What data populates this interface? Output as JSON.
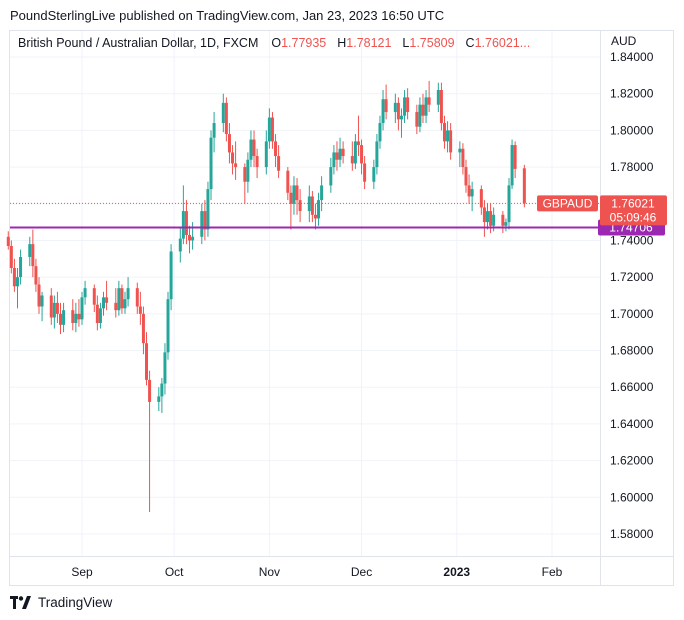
{
  "header": {
    "publisher": "PoundSterlingLive published on TradingView.com, Jan 23, 2023 16:50 UTC"
  },
  "legend": {
    "symbol": "British Pound / Australian Dollar, 1D, FXCM",
    "o_label": "O",
    "o_value": "1.77935",
    "h_label": "H",
    "h_value": "1.78121",
    "l_label": "L",
    "l_value": "1.75809",
    "c_label": "C",
    "c_value": "1.76021..."
  },
  "axis": {
    "unit": "AUD"
  },
  "footer": {
    "brand": "TradingView"
  },
  "colors": {
    "up": "#26a69a",
    "down": "#ef5350",
    "level_line": "#9c27b0",
    "grid": "#f0f3fa"
  },
  "chart_data": {
    "type": "candlestick",
    "ylim": [
      1.57,
      1.845
    ],
    "y_ticks": [
      "1.84000",
      "1.82000",
      "1.80000",
      "1.78000",
      "1.76000",
      "1.74000",
      "1.72000",
      "1.70000",
      "1.68000",
      "1.66000",
      "1.64000",
      "1.62000",
      "1.60000",
      "1.58000"
    ],
    "x_ticks": [
      "Sep",
      "Oct",
      "Nov",
      "Dec",
      "2023",
      "Feb"
    ],
    "x_tick_bold": "2023",
    "x_range": [
      "2022-08-08",
      "2023-02-10"
    ],
    "x_tick_dates": [
      "2022-09-01",
      "2022-10-01",
      "2022-11-01",
      "2022-12-01",
      "2023-01-01",
      "2023-02-01"
    ],
    "ohlc": [
      {
        "date": "2022-08-08",
        "o": 1.742,
        "h": 1.745,
        "l": 1.735,
        "c": 1.737
      },
      {
        "date": "2022-08-09",
        "o": 1.737,
        "h": 1.74,
        "l": 1.722,
        "c": 1.725
      },
      {
        "date": "2022-08-10",
        "o": 1.725,
        "h": 1.73,
        "l": 1.712,
        "c": 1.715
      },
      {
        "date": "2022-08-11",
        "o": 1.715,
        "h": 1.725,
        "l": 1.703,
        "c": 1.72
      },
      {
        "date": "2022-08-12",
        "o": 1.72,
        "h": 1.735,
        "l": 1.716,
        "c": 1.731
      },
      {
        "date": "2022-08-15",
        "o": 1.731,
        "h": 1.742,
        "l": 1.726,
        "c": 1.738
      },
      {
        "date": "2022-08-16",
        "o": 1.738,
        "h": 1.746,
        "l": 1.72,
        "c": 1.726
      },
      {
        "date": "2022-08-17",
        "o": 1.726,
        "h": 1.73,
        "l": 1.712,
        "c": 1.716
      },
      {
        "date": "2022-08-18",
        "o": 1.716,
        "h": 1.72,
        "l": 1.7,
        "c": 1.704
      },
      {
        "date": "2022-08-19",
        "o": 1.704,
        "h": 1.712,
        "l": 1.696,
        "c": 1.71
      },
      {
        "date": "2022-08-22",
        "o": 1.71,
        "h": 1.714,
        "l": 1.694,
        "c": 1.698
      },
      {
        "date": "2022-08-23",
        "o": 1.698,
        "h": 1.71,
        "l": 1.692,
        "c": 1.706
      },
      {
        "date": "2022-08-24",
        "o": 1.706,
        "h": 1.712,
        "l": 1.695,
        "c": 1.7
      },
      {
        "date": "2022-08-25",
        "o": 1.7,
        "h": 1.706,
        "l": 1.689,
        "c": 1.694
      },
      {
        "date": "2022-08-26",
        "o": 1.694,
        "h": 1.706,
        "l": 1.69,
        "c": 1.702
      },
      {
        "date": "2022-08-29",
        "o": 1.702,
        "h": 1.708,
        "l": 1.691,
        "c": 1.695
      },
      {
        "date": "2022-08-30",
        "o": 1.695,
        "h": 1.706,
        "l": 1.69,
        "c": 1.7
      },
      {
        "date": "2022-08-31",
        "o": 1.7,
        "h": 1.708,
        "l": 1.693,
        "c": 1.697
      },
      {
        "date": "2022-09-01",
        "o": 1.697,
        "h": 1.712,
        "l": 1.694,
        "c": 1.709
      },
      {
        "date": "2022-09-02",
        "o": 1.709,
        "h": 1.718,
        "l": 1.705,
        "c": 1.714
      },
      {
        "date": "2022-09-05",
        "o": 1.714,
        "h": 1.716,
        "l": 1.701,
        "c": 1.705
      },
      {
        "date": "2022-09-06",
        "o": 1.705,
        "h": 1.71,
        "l": 1.691,
        "c": 1.695
      },
      {
        "date": "2022-09-07",
        "o": 1.695,
        "h": 1.706,
        "l": 1.692,
        "c": 1.703
      },
      {
        "date": "2022-09-08",
        "o": 1.703,
        "h": 1.712,
        "l": 1.699,
        "c": 1.709
      },
      {
        "date": "2022-09-09",
        "o": 1.709,
        "h": 1.718,
        "l": 1.702,
        "c": 1.706
      },
      {
        "date": "2022-09-12",
        "o": 1.706,
        "h": 1.714,
        "l": 1.698,
        "c": 1.702
      },
      {
        "date": "2022-09-13",
        "o": 1.702,
        "h": 1.718,
        "l": 1.699,
        "c": 1.714
      },
      {
        "date": "2022-09-14",
        "o": 1.714,
        "h": 1.716,
        "l": 1.7,
        "c": 1.703
      },
      {
        "date": "2022-09-15",
        "o": 1.703,
        "h": 1.712,
        "l": 1.7,
        "c": 1.708
      },
      {
        "date": "2022-09-16",
        "o": 1.708,
        "h": 1.72,
        "l": 1.704,
        "c": 1.714
      },
      {
        "date": "2022-09-19",
        "o": 1.714,
        "h": 1.717,
        "l": 1.7,
        "c": 1.704
      },
      {
        "date": "2022-09-20",
        "o": 1.704,
        "h": 1.712,
        "l": 1.694,
        "c": 1.7
      },
      {
        "date": "2022-09-21",
        "o": 1.7,
        "h": 1.704,
        "l": 1.678,
        "c": 1.684
      },
      {
        "date": "2022-09-22",
        "o": 1.684,
        "h": 1.69,
        "l": 1.661,
        "c": 1.664
      },
      {
        "date": "2022-09-23",
        "o": 1.664,
        "h": 1.669,
        "l": 1.592,
        "c": 1.652
      },
      {
        "date": "2022-09-26",
        "o": 1.652,
        "h": 1.66,
        "l": 1.647,
        "c": 1.655
      },
      {
        "date": "2022-09-27",
        "o": 1.655,
        "h": 1.665,
        "l": 1.646,
        "c": 1.662
      },
      {
        "date": "2022-09-28",
        "o": 1.662,
        "h": 1.684,
        "l": 1.656,
        "c": 1.679
      },
      {
        "date": "2022-09-29",
        "o": 1.679,
        "h": 1.712,
        "l": 1.675,
        "c": 1.708
      },
      {
        "date": "2022-09-30",
        "o": 1.708,
        "h": 1.738,
        "l": 1.702,
        "c": 1.734
      },
      {
        "date": "2022-10-03",
        "o": 1.734,
        "h": 1.747,
        "l": 1.728,
        "c": 1.741
      },
      {
        "date": "2022-10-04",
        "o": 1.741,
        "h": 1.77,
        "l": 1.738,
        "c": 1.756
      },
      {
        "date": "2022-10-05",
        "o": 1.756,
        "h": 1.762,
        "l": 1.738,
        "c": 1.743
      },
      {
        "date": "2022-10-06",
        "o": 1.743,
        "h": 1.748,
        "l": 1.733,
        "c": 1.74
      },
      {
        "date": "2022-10-07",
        "o": 1.74,
        "h": 1.75,
        "l": 1.735,
        "c": 1.742
      },
      {
        "date": "2022-10-10",
        "o": 1.742,
        "h": 1.76,
        "l": 1.738,
        "c": 1.756
      },
      {
        "date": "2022-10-11",
        "o": 1.756,
        "h": 1.762,
        "l": 1.74,
        "c": 1.746
      },
      {
        "date": "2022-10-12",
        "o": 1.746,
        "h": 1.772,
        "l": 1.742,
        "c": 1.768
      },
      {
        "date": "2022-10-13",
        "o": 1.768,
        "h": 1.8,
        "l": 1.762,
        "c": 1.796
      },
      {
        "date": "2022-10-14",
        "o": 1.796,
        "h": 1.81,
        "l": 1.788,
        "c": 1.804
      },
      {
        "date": "2022-10-17",
        "o": 1.804,
        "h": 1.82,
        "l": 1.799,
        "c": 1.815
      },
      {
        "date": "2022-10-18",
        "o": 1.815,
        "h": 1.818,
        "l": 1.794,
        "c": 1.798
      },
      {
        "date": "2022-10-19",
        "o": 1.798,
        "h": 1.804,
        "l": 1.782,
        "c": 1.788
      },
      {
        "date": "2022-10-20",
        "o": 1.788,
        "h": 1.792,
        "l": 1.776,
        "c": 1.782
      },
      {
        "date": "2022-10-21",
        "o": 1.782,
        "h": 1.794,
        "l": 1.773,
        "c": 1.78
      },
      {
        "date": "2022-10-24",
        "o": 1.78,
        "h": 1.782,
        "l": 1.76,
        "c": 1.772
      },
      {
        "date": "2022-10-25",
        "o": 1.772,
        "h": 1.788,
        "l": 1.766,
        "c": 1.784
      },
      {
        "date": "2022-10-26",
        "o": 1.784,
        "h": 1.8,
        "l": 1.78,
        "c": 1.795
      },
      {
        "date": "2022-10-27",
        "o": 1.795,
        "h": 1.8,
        "l": 1.78,
        "c": 1.786
      },
      {
        "date": "2022-10-28",
        "o": 1.786,
        "h": 1.79,
        "l": 1.774,
        "c": 1.78
      },
      {
        "date": "2022-10-31",
        "o": 1.78,
        "h": 1.8,
        "l": 1.776,
        "c": 1.794
      },
      {
        "date": "2022-11-01",
        "o": 1.794,
        "h": 1.812,
        "l": 1.79,
        "c": 1.807
      },
      {
        "date": "2022-11-02",
        "o": 1.807,
        "h": 1.81,
        "l": 1.79,
        "c": 1.794
      },
      {
        "date": "2022-11-03",
        "o": 1.794,
        "h": 1.798,
        "l": 1.78,
        "c": 1.786
      },
      {
        "date": "2022-11-04",
        "o": 1.786,
        "h": 1.792,
        "l": 1.774,
        "c": 1.778
      },
      {
        "date": "2022-11-07",
        "o": 1.778,
        "h": 1.78,
        "l": 1.762,
        "c": 1.766
      },
      {
        "date": "2022-11-08",
        "o": 1.766,
        "h": 1.77,
        "l": 1.746,
        "c": 1.76
      },
      {
        "date": "2022-11-09",
        "o": 1.76,
        "h": 1.775,
        "l": 1.754,
        "c": 1.77
      },
      {
        "date": "2022-11-10",
        "o": 1.77,
        "h": 1.774,
        "l": 1.754,
        "c": 1.762
      },
      {
        "date": "2022-11-11",
        "o": 1.762,
        "h": 1.768,
        "l": 1.75,
        "c": 1.756
      },
      {
        "date": "2022-11-14",
        "o": 1.756,
        "h": 1.77,
        "l": 1.75,
        "c": 1.764
      },
      {
        "date": "2022-11-15",
        "o": 1.764,
        "h": 1.767,
        "l": 1.75,
        "c": 1.754
      },
      {
        "date": "2022-11-16",
        "o": 1.754,
        "h": 1.76,
        "l": 1.746,
        "c": 1.752
      },
      {
        "date": "2022-11-17",
        "o": 1.752,
        "h": 1.766,
        "l": 1.748,
        "c": 1.762
      },
      {
        "date": "2022-11-18",
        "o": 1.762,
        "h": 1.775,
        "l": 1.756,
        "c": 1.77
      },
      {
        "date": "2022-11-21",
        "o": 1.77,
        "h": 1.785,
        "l": 1.766,
        "c": 1.78
      },
      {
        "date": "2022-11-22",
        "o": 1.78,
        "h": 1.792,
        "l": 1.776,
        "c": 1.788
      },
      {
        "date": "2022-11-23",
        "o": 1.788,
        "h": 1.794,
        "l": 1.778,
        "c": 1.784
      },
      {
        "date": "2022-11-24",
        "o": 1.784,
        "h": 1.796,
        "l": 1.78,
        "c": 1.79
      },
      {
        "date": "2022-11-25",
        "o": 1.79,
        "h": 1.794,
        "l": 1.782,
        "c": 1.786
      },
      {
        "date": "2022-11-28",
        "o": 1.786,
        "h": 1.794,
        "l": 1.778,
        "c": 1.782
      },
      {
        "date": "2022-11-29",
        "o": 1.782,
        "h": 1.798,
        "l": 1.779,
        "c": 1.794
      },
      {
        "date": "2022-11-30",
        "o": 1.794,
        "h": 1.808,
        "l": 1.786,
        "c": 1.792
      },
      {
        "date": "2022-12-01",
        "o": 1.792,
        "h": 1.795,
        "l": 1.776,
        "c": 1.782
      },
      {
        "date": "2022-12-02",
        "o": 1.782,
        "h": 1.786,
        "l": 1.768,
        "c": 1.772
      },
      {
        "date": "2022-12-05",
        "o": 1.772,
        "h": 1.784,
        "l": 1.768,
        "c": 1.78
      },
      {
        "date": "2022-12-06",
        "o": 1.78,
        "h": 1.798,
        "l": 1.776,
        "c": 1.794
      },
      {
        "date": "2022-12-07",
        "o": 1.794,
        "h": 1.808,
        "l": 1.79,
        "c": 1.804
      },
      {
        "date": "2022-12-08",
        "o": 1.804,
        "h": 1.822,
        "l": 1.8,
        "c": 1.817
      },
      {
        "date": "2022-12-09",
        "o": 1.817,
        "h": 1.825,
        "l": 1.806,
        "c": 1.81
      },
      {
        "date": "2022-12-12",
        "o": 1.81,
        "h": 1.82,
        "l": 1.804,
        "c": 1.815
      },
      {
        "date": "2022-12-13",
        "o": 1.815,
        "h": 1.818,
        "l": 1.8,
        "c": 1.806
      },
      {
        "date": "2022-12-14",
        "o": 1.806,
        "h": 1.812,
        "l": 1.796,
        "c": 1.808
      },
      {
        "date": "2022-12-15",
        "o": 1.808,
        "h": 1.822,
        "l": 1.804,
        "c": 1.818
      },
      {
        "date": "2022-12-16",
        "o": 1.818,
        "h": 1.823,
        "l": 1.806,
        "c": 1.81
      },
      {
        "date": "2022-12-19",
        "o": 1.81,
        "h": 1.814,
        "l": 1.798,
        "c": 1.802
      },
      {
        "date": "2022-12-20",
        "o": 1.802,
        "h": 1.818,
        "l": 1.799,
        "c": 1.814
      },
      {
        "date": "2022-12-21",
        "o": 1.814,
        "h": 1.82,
        "l": 1.804,
        "c": 1.808
      },
      {
        "date": "2022-12-22",
        "o": 1.808,
        "h": 1.822,
        "l": 1.804,
        "c": 1.818
      },
      {
        "date": "2022-12-23",
        "o": 1.818,
        "h": 1.827,
        "l": 1.81,
        "c": 1.814
      },
      {
        "date": "2022-12-26",
        "o": 1.814,
        "h": 1.826,
        "l": 1.81,
        "c": 1.822
      },
      {
        "date": "2022-12-27",
        "o": 1.822,
        "h": 1.826,
        "l": 1.8,
        "c": 1.804
      },
      {
        "date": "2022-12-28",
        "o": 1.804,
        "h": 1.808,
        "l": 1.79,
        "c": 1.794
      },
      {
        "date": "2022-12-29",
        "o": 1.794,
        "h": 1.805,
        "l": 1.788,
        "c": 1.8
      },
      {
        "date": "2022-12-30",
        "o": 1.8,
        "h": 1.804,
        "l": 1.784,
        "c": 1.788
      },
      {
        "date": "2023-01-02",
        "o": 1.788,
        "h": 1.794,
        "l": 1.78,
        "c": 1.79
      },
      {
        "date": "2023-01-03",
        "o": 1.79,
        "h": 1.793,
        "l": 1.776,
        "c": 1.78
      },
      {
        "date": "2023-01-04",
        "o": 1.78,
        "h": 1.784,
        "l": 1.766,
        "c": 1.77
      },
      {
        "date": "2023-01-05",
        "o": 1.77,
        "h": 1.776,
        "l": 1.76,
        "c": 1.764
      },
      {
        "date": "2023-01-06",
        "o": 1.764,
        "h": 1.772,
        "l": 1.756,
        "c": 1.768
      },
      {
        "date": "2023-01-09",
        "o": 1.768,
        "h": 1.77,
        "l": 1.754,
        "c": 1.758
      },
      {
        "date": "2023-01-10",
        "o": 1.758,
        "h": 1.762,
        "l": 1.742,
        "c": 1.75
      },
      {
        "date": "2023-01-11",
        "o": 1.75,
        "h": 1.76,
        "l": 1.746,
        "c": 1.756
      },
      {
        "date": "2023-01-12",
        "o": 1.756,
        "h": 1.76,
        "l": 1.744,
        "c": 1.748
      },
      {
        "date": "2023-01-13",
        "o": 1.748,
        "h": 1.758,
        "l": 1.745,
        "c": 1.754
      },
      {
        "date": "2023-01-16",
        "o": 1.754,
        "h": 1.756,
        "l": 1.744,
        "c": 1.748
      },
      {
        "date": "2023-01-17",
        "o": 1.748,
        "h": 1.752,
        "l": 1.745,
        "c": 1.75
      },
      {
        "date": "2023-01-18",
        "o": 1.75,
        "h": 1.774,
        "l": 1.746,
        "c": 1.77
      },
      {
        "date": "2023-01-19",
        "o": 1.77,
        "h": 1.795,
        "l": 1.768,
        "c": 1.792
      },
      {
        "date": "2023-01-20",
        "o": 1.792,
        "h": 1.794,
        "l": 1.774,
        "c": 1.779
      },
      {
        "date": "2023-01-23",
        "o": 1.77935,
        "h": 1.78121,
        "l": 1.75809,
        "c": 1.76021
      }
    ],
    "annotations": [
      {
        "type": "horizontal_line",
        "y": 1.74706,
        "label": "1.74706",
        "color": "#9c27b0"
      },
      {
        "type": "price_line",
        "y": 1.76021,
        "label": "1.76021",
        "symbol": "GBPAUD",
        "countdown": "05:09:46",
        "color": "#ef5350"
      }
    ]
  }
}
